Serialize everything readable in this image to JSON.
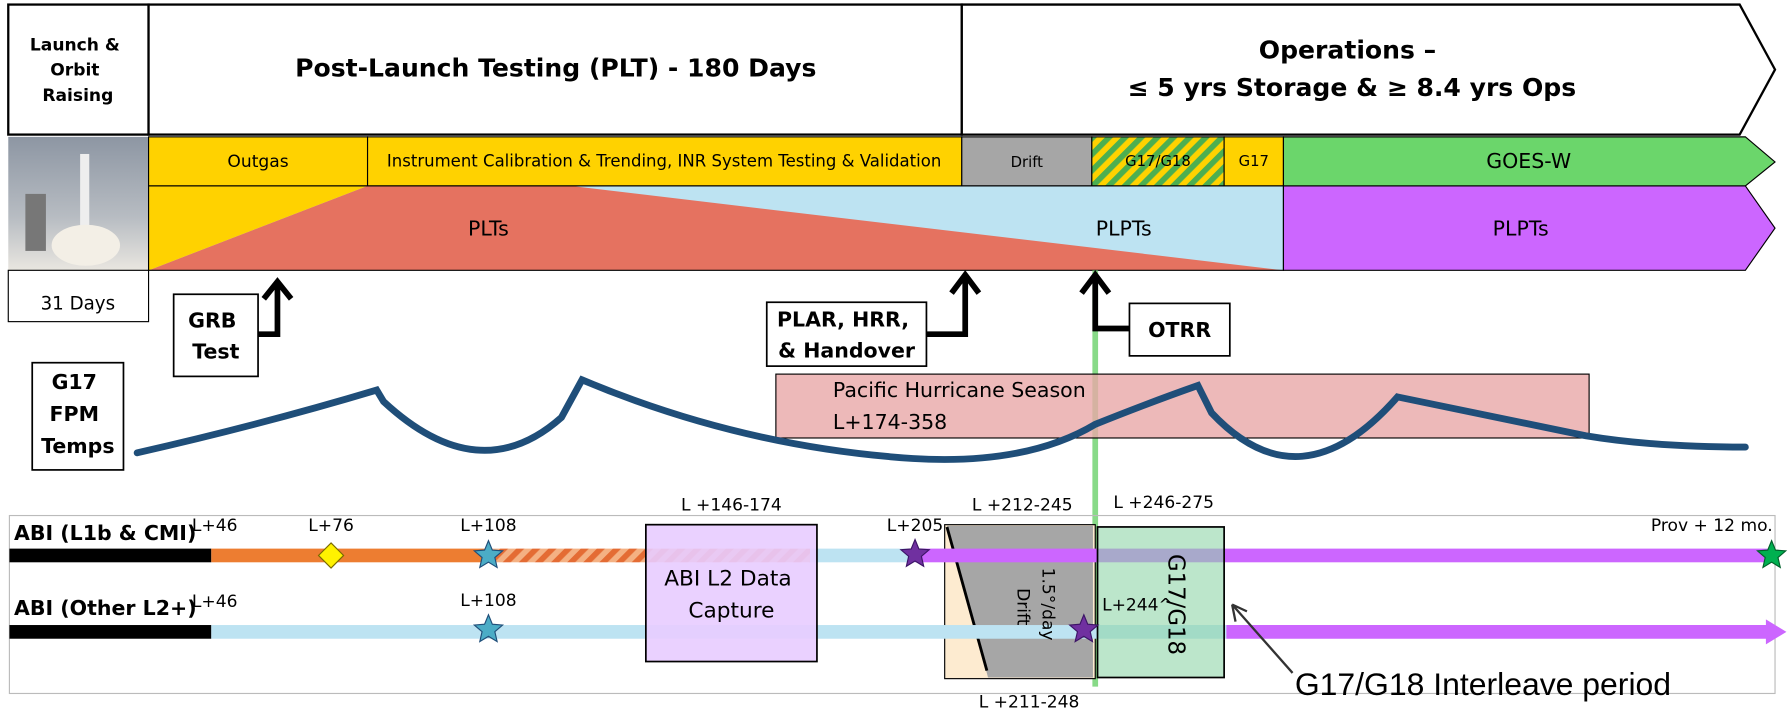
{
  "header": {
    "launch": [
      "Launch &",
      "Orbit",
      "Raising"
    ],
    "plt": "Post-Launch Testing (PLT) - 180 Days",
    "operations": [
      "Operations –",
      "≤ 5 yrs Storage & ≥ 8.4 yrs Ops"
    ],
    "launch_duration": "31 Days"
  },
  "activities": {
    "outgas": "Outgas",
    "calibration": "Instrument Calibration & Trending, INR System Testing & Validation",
    "drift": "Drift",
    "interleave": "G17/G18",
    "g17": "G17",
    "goes_w": "GOES-W"
  },
  "tests": {
    "plts": "PLTs",
    "plpts": "PLPTs",
    "plpts_ops": "PLPTs"
  },
  "milestones": {
    "grb": [
      "GRB",
      "Test"
    ],
    "plar": [
      "PLAR, HRR,",
      "& Handover"
    ],
    "otrr": "OTRR"
  },
  "temps": {
    "label": [
      "G17",
      "FPM",
      "Temps"
    ],
    "hurricane": [
      "Pacific Hurricane Season",
      "L+174-358"
    ]
  },
  "abi": {
    "row1": {
      "label": "ABI (L1b & CMI)",
      "annotations": [
        "L+46",
        "L+76",
        "L+108",
        "L+205",
        "Prov + 12 mo."
      ]
    },
    "row2": {
      "label": "ABI (Other L2+)",
      "annotations": [
        "L+46",
        "L+108",
        "L+244^"
      ]
    },
    "l2_capture": {
      "range": "L +146-174",
      "text": [
        "ABI L2 Data",
        "Capture"
      ]
    },
    "drift": {
      "range_top": "L +212-245",
      "range_bottom": "L +211-248",
      "text": [
        "1.5°/day",
        "Drift"
      ]
    },
    "interleave": {
      "range": "L +246-275",
      "text": "G17/G18",
      "callout": "G17/G18 Interleave period"
    }
  }
}
